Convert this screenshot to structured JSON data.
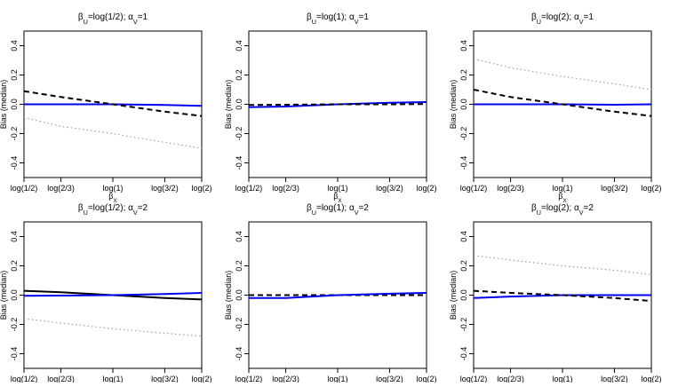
{
  "chart_data": [
    {
      "type": "line",
      "title": "βU=log(1/2); αV=1",
      "xlabel": "βX",
      "ylabel": "Bias (median)",
      "x": [
        -0.693,
        -0.405,
        0.0,
        0.405,
        0.693
      ],
      "x_tick_labels": [
        "log(1/2)",
        "log(2/3)",
        "log(1)",
        "log(3/2)",
        "log(2)"
      ],
      "xlim": [
        -0.693,
        0.693
      ],
      "ylim": [
        -0.5,
        0.5
      ],
      "y_ticks": [
        -0.4,
        -0.2,
        0.0,
        0.2,
        0.4
      ],
      "grid": false,
      "series": [
        {
          "color": "#0000ee",
          "dash": "solid",
          "values": [
            0.0,
            0.0,
            0.0,
            -0.004,
            -0.01
          ]
        },
        {
          "color": "#000000",
          "dash": "dashed",
          "values": [
            0.09,
            0.05,
            0.0,
            -0.05,
            -0.08
          ]
        },
        {
          "color": "#a0a0a0",
          "dash": "dotted",
          "values": [
            -0.09,
            -0.15,
            -0.2,
            -0.26,
            -0.3
          ]
        }
      ]
    },
    {
      "type": "line",
      "title": "βU=log(1); αV=1",
      "xlabel": "βX",
      "ylabel": "Bias (median)",
      "x": [
        -0.693,
        -0.405,
        0.0,
        0.405,
        0.693
      ],
      "x_tick_labels": [
        "log(1/2)",
        "log(2/3)",
        "log(1)",
        "log(3/2)",
        "log(2)"
      ],
      "xlim": [
        -0.693,
        0.693
      ],
      "ylim": [
        -0.5,
        0.5
      ],
      "y_ticks": [
        -0.4,
        -0.2,
        0.0,
        0.2,
        0.4
      ],
      "grid": false,
      "series": [
        {
          "color": "#0000ee",
          "dash": "solid",
          "values": [
            -0.02,
            -0.015,
            0.0,
            0.01,
            0.015
          ]
        },
        {
          "color": "#000000",
          "dash": "dashed",
          "values": [
            -0.005,
            -0.003,
            0.0,
            0.0,
            0.002
          ]
        }
      ]
    },
    {
      "type": "line",
      "title": "βU=log(2); αV=1",
      "xlabel": "βX",
      "ylabel": "Bias (median)",
      "x": [
        -0.693,
        -0.405,
        0.0,
        0.405,
        0.693
      ],
      "x_tick_labels": [
        "log(1/2)",
        "log(2/3)",
        "log(1)",
        "log(3/2)",
        "log(2)"
      ],
      "xlim": [
        -0.693,
        0.693
      ],
      "ylim": [
        -0.5,
        0.5
      ],
      "y_ticks": [
        -0.4,
        -0.2,
        0.0,
        0.2,
        0.4
      ],
      "grid": false,
      "series": [
        {
          "color": "#0000ee",
          "dash": "solid",
          "values": [
            0.0,
            0.0,
            0.0,
            -0.003,
            0.0
          ]
        },
        {
          "color": "#000000",
          "dash": "dashed",
          "values": [
            0.1,
            0.05,
            0.0,
            -0.05,
            -0.08
          ]
        },
        {
          "color": "#a0a0a0",
          "dash": "dotted",
          "values": [
            0.31,
            0.25,
            0.19,
            0.14,
            0.1
          ]
        }
      ]
    },
    {
      "type": "line",
      "title": "βU=log(1/2); αV=2",
      "xlabel": "βX",
      "ylabel": "Bias (median)",
      "x": [
        -0.693,
        -0.405,
        0.0,
        0.405,
        0.693
      ],
      "x_tick_labels": [
        "log(1/2)",
        "log(2/3)",
        "log(1)",
        "log(3/2)",
        "log(2)"
      ],
      "xlim": [
        -0.693,
        0.693
      ],
      "ylim": [
        -0.5,
        0.5
      ],
      "y_ticks": [
        -0.4,
        -0.2,
        0.0,
        0.2,
        0.4
      ],
      "grid": false,
      "series": [
        {
          "color": "#000000",
          "dash": "solid",
          "values": [
            0.03,
            0.02,
            0.0,
            -0.02,
            -0.03
          ]
        },
        {
          "color": "#0000ee",
          "dash": "solid",
          "values": [
            -0.005,
            -0.003,
            0.0,
            0.008,
            0.015
          ]
        },
        {
          "color": "#a0a0a0",
          "dash": "dotted",
          "values": [
            -0.16,
            -0.19,
            -0.23,
            -0.26,
            -0.28
          ]
        }
      ]
    },
    {
      "type": "line",
      "title": "βU=log(1); αV=2",
      "xlabel": "βX",
      "ylabel": "Bias (median)",
      "x": [
        -0.693,
        -0.405,
        0.0,
        0.405,
        0.693
      ],
      "x_tick_labels": [
        "log(1/2)",
        "log(2/3)",
        "log(1)",
        "log(3/2)",
        "log(2)"
      ],
      "xlim": [
        -0.693,
        0.693
      ],
      "ylim": [
        -0.5,
        0.5
      ],
      "y_ticks": [
        -0.4,
        -0.2,
        0.0,
        0.2,
        0.4
      ],
      "grid": false,
      "series": [
        {
          "color": "#000000",
          "dash": "dashed",
          "values": [
            0.0,
            0.0,
            0.0,
            0.0,
            0.0
          ]
        },
        {
          "color": "#0000ee",
          "dash": "solid",
          "values": [
            -0.02,
            -0.02,
            0.0,
            0.01,
            0.015
          ]
        }
      ]
    },
    {
      "type": "line",
      "title": "βU=log(2); αV=2",
      "xlabel": "βX",
      "ylabel": "Bias (median)",
      "x": [
        -0.693,
        -0.405,
        0.0,
        0.405,
        0.693
      ],
      "x_tick_labels": [
        "log(1/2)",
        "log(2/3)",
        "log(1)",
        "log(3/2)",
        "log(2)"
      ],
      "xlim": [
        -0.693,
        0.693
      ],
      "ylim": [
        -0.5,
        0.5
      ],
      "y_ticks": [
        -0.4,
        -0.2,
        0.0,
        0.2,
        0.4
      ],
      "grid": false,
      "series": [
        {
          "color": "#0000ee",
          "dash": "solid",
          "values": [
            -0.02,
            -0.01,
            0.0,
            0.0,
            0.0
          ]
        },
        {
          "color": "#000000",
          "dash": "dashed",
          "values": [
            0.03,
            0.015,
            0.0,
            -0.02,
            -0.04
          ]
        },
        {
          "color": "#a0a0a0",
          "dash": "dotted",
          "values": [
            0.27,
            0.24,
            0.2,
            0.17,
            0.14
          ]
        }
      ]
    }
  ]
}
